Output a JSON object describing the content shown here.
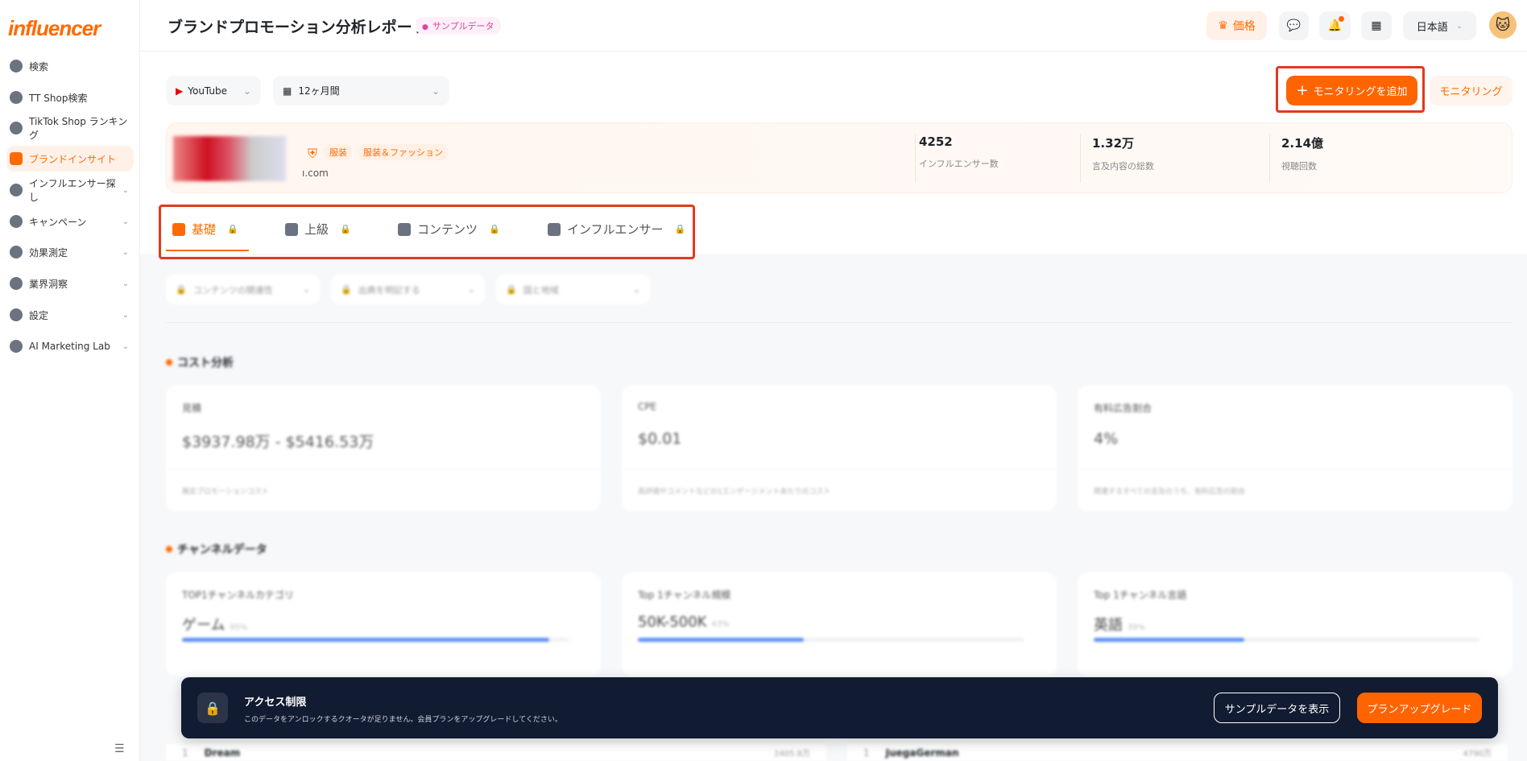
{
  "logo": "influencer",
  "sidebar": {
    "items": [
      {
        "label": "検索",
        "icon": "compass-icon"
      },
      {
        "label": "TT Shop検索",
        "icon": "shopping-bag-icon"
      },
      {
        "label": "TikTok Shop ランキング",
        "icon": "bar-chart-icon"
      },
      {
        "label": "ブランドインサイト",
        "icon": "brand-r-icon",
        "active": true
      },
      {
        "label": "インフルエンサー探し",
        "icon": "users-icon",
        "chevron": true
      },
      {
        "label": "キャンペーン",
        "icon": "document-icon",
        "chevron": true
      },
      {
        "label": "効果測定",
        "icon": "gauge-icon",
        "chevron": true
      },
      {
        "label": "業界洞察",
        "icon": "pulse-icon",
        "chevron": true
      },
      {
        "label": "設定",
        "icon": "gear-icon",
        "chevron": true
      },
      {
        "label": "AI Marketing Lab",
        "icon": "ai-chip-icon",
        "chevron": true
      }
    ]
  },
  "header": {
    "title": "ブランドプロモーション分析レポート",
    "badge": "サンプルデータ",
    "pricing": "価格",
    "language": "日本語"
  },
  "filters": {
    "platform": "YouTube",
    "period": "12ヶ月間"
  },
  "actions": {
    "add_monitoring": "モニタリングを追加",
    "monitoring": "モニタリング"
  },
  "brand": {
    "domain": "ı.com",
    "tags": [
      "服装",
      "服装＆ファッション"
    ],
    "stats": [
      {
        "value": "4252",
        "label": "インフルエンサー数"
      },
      {
        "value": "1.32万",
        "label": "言及内容の総数"
      },
      {
        "value": "2.14億",
        "label": "視聴回数"
      }
    ]
  },
  "tabs": [
    {
      "label": "基礎",
      "active": true
    },
    {
      "label": "上級"
    },
    {
      "label": "コンテンツ"
    },
    {
      "label": "インフルエンサー"
    }
  ],
  "locked_filters": [
    "コンテンツの関連性",
    "出典を明記する",
    "国と地域"
  ],
  "cost": {
    "title": "コスト分析",
    "cards": [
      {
        "label": "見積",
        "value": "$3937.98万 - $5416.53万",
        "note": "推定プロモーションコスト"
      },
      {
        "label": "CPE",
        "value": "$0.01",
        "note": "高評価やコメントなどの1エンゲージメントあたりのコスト"
      },
      {
        "label": "有料広告割合",
        "value": "4%",
        "note": "関連するすべての言及のうち、有料広告の割合"
      }
    ]
  },
  "channel": {
    "title": "チャンネルデータ",
    "cards": [
      {
        "label": "TOP1チャンネルカテゴリ",
        "value": "ゲーム",
        "pct": "95%",
        "fill": 95
      },
      {
        "label": "Top 1チャンネル規模",
        "value": "50K-500K",
        "pct": "43%",
        "fill": 43
      },
      {
        "label": "Top 1チャンネル言語",
        "value": "英語",
        "pct": "39%",
        "fill": 39
      }
    ]
  },
  "rows": [
    {
      "rank": "1",
      "name": "Dream",
      "value": "2405.8万"
    },
    {
      "rank": "1",
      "name": "JuegaGerman",
      "value": "4790万"
    }
  ],
  "banner": {
    "title": "アクセス制限",
    "message": "このデータをアンロックするクオータが足りません。会員プランをアップグレードしてください。",
    "sample_btn": "サンプルデータを表示",
    "upgrade_btn": "プランアップグレード"
  },
  "colors": {
    "accent": "#ff6a00",
    "banner": "#111b31",
    "highlight": "#e03a1e",
    "bar": "#5b8ff9"
  }
}
